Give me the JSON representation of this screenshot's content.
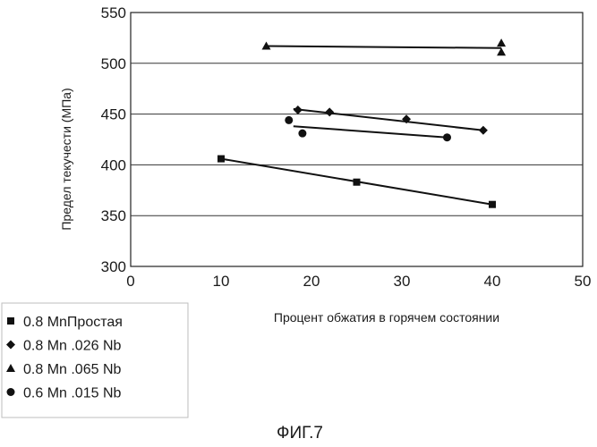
{
  "chart_data": {
    "type": "scatter",
    "xlabel": "Процент обжатия в горячем состоянии",
    "ylabel": "Предел текучести (МПа)",
    "caption": "ФИГ.7",
    "xlim": [
      0,
      50
    ],
    "ylim": [
      300,
      550
    ],
    "x_ticks": [
      0,
      10,
      20,
      30,
      40,
      50
    ],
    "y_ticks": [
      300,
      350,
      400,
      450,
      500,
      550
    ],
    "grid": "horizontal",
    "legend_position": "bottom-left",
    "series": [
      {
        "name": "0.8 MnПростая",
        "marker": "square",
        "points": [
          [
            10,
            406
          ],
          [
            25,
            383
          ],
          [
            40,
            361
          ]
        ],
        "trendline": [
          [
            10,
            406
          ],
          [
            40,
            361
          ]
        ]
      },
      {
        "name": "0.8 Mn .026 Nb",
        "marker": "diamond",
        "points": [
          [
            18.5,
            454
          ],
          [
            22,
            452
          ],
          [
            30.5,
            445
          ],
          [
            39,
            434
          ]
        ],
        "trendline": [
          [
            18,
            455
          ],
          [
            39,
            434
          ]
        ]
      },
      {
        "name": "0.8 Mn .065 Nb",
        "marker": "triangle",
        "points": [
          [
            15,
            517
          ],
          [
            41,
            520
          ],
          [
            41,
            511
          ]
        ],
        "trendline": [
          [
            15,
            517
          ],
          [
            41,
            515
          ]
        ]
      },
      {
        "name": "0.6 Mn .015 Nb",
        "marker": "circle",
        "points": [
          [
            17.5,
            444
          ],
          [
            19,
            431
          ],
          [
            35,
            427
          ]
        ],
        "trendline": [
          [
            18,
            438
          ],
          [
            35,
            427
          ]
        ]
      }
    ]
  }
}
